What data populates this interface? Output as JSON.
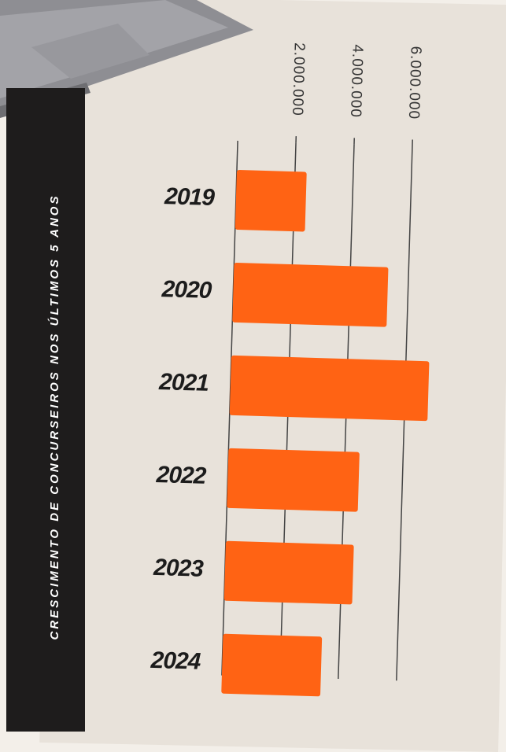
{
  "chart_data": {
    "type": "bar",
    "orientation": "horizontal",
    "title": "CRESCIMENTO DE CONCURSEIROS NOS ÚLTIMOS 5 ANOS",
    "categories": [
      "2019",
      "2020",
      "2021",
      "2022",
      "2023",
      "2024"
    ],
    "values": [
      2400000,
      5300000,
      6800000,
      4500000,
      4400000,
      3400000
    ],
    "color": "#ff6314",
    "xlim": [
      0,
      7000000
    ],
    "xticks": [
      {
        "value": 2000000,
        "label": "2.000.000"
      },
      {
        "value": 4000000,
        "label": "4.000.000"
      },
      {
        "value": 6000000,
        "label": "6.000.000"
      }
    ],
    "grid": true
  }
}
